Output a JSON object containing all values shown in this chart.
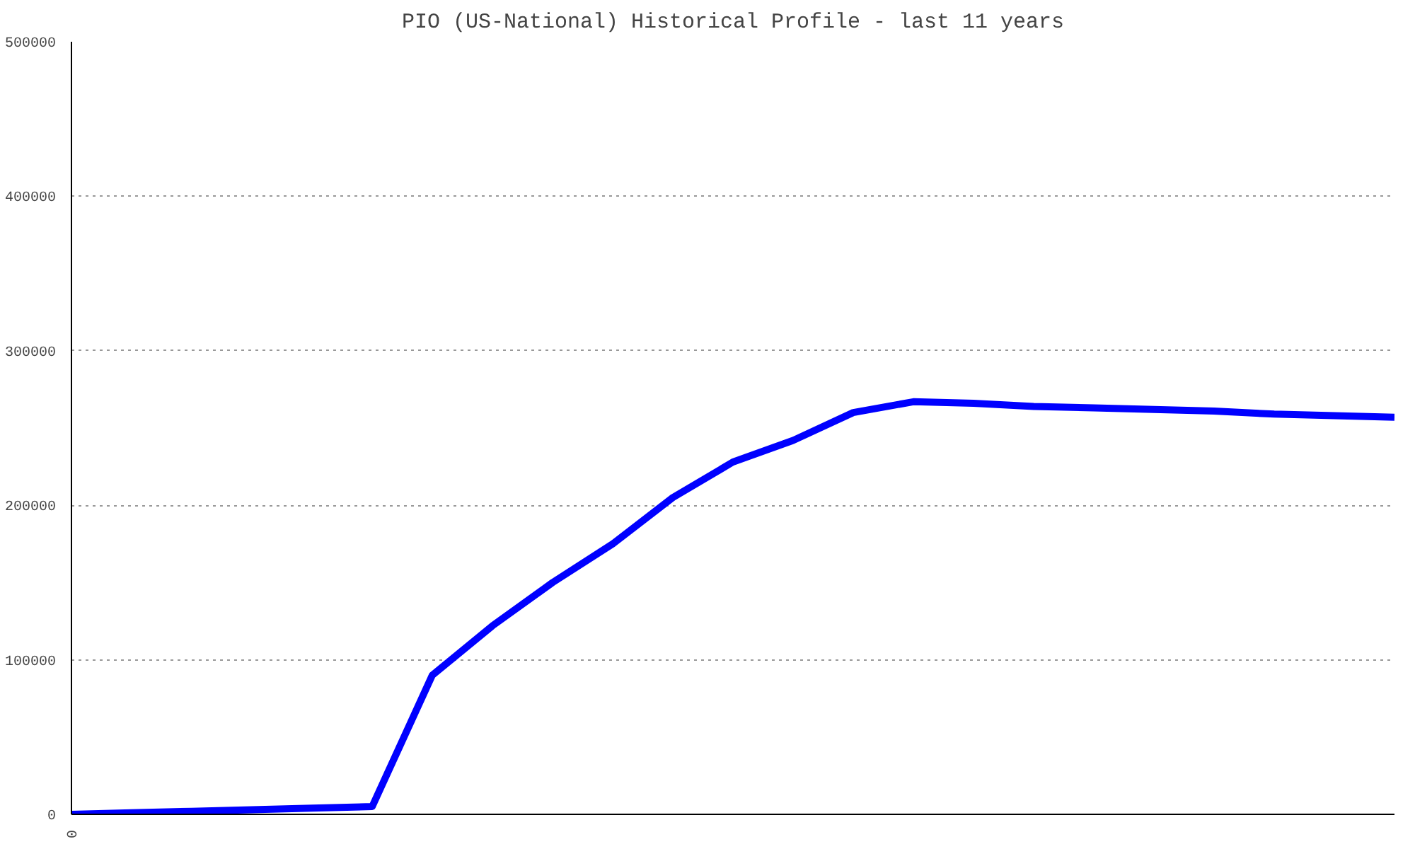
{
  "chart_data": {
    "type": "line",
    "title": "PIO (US-National) Historical Profile - last 11 years",
    "categories": [
      "0",
      null,
      null,
      null,
      null,
      null,
      null,
      null,
      null,
      null,
      null,
      null,
      null,
      null,
      null,
      null,
      null,
      null,
      null,
      null,
      null,
      null,
      null
    ],
    "series": [
      {
        "color": "#0000ff",
        "values": [
          0,
          1000,
          2000,
          3000,
          4000,
          5000,
          90000,
          122000,
          150000,
          175000,
          205000,
          228000,
          242000,
          260000,
          267000,
          266000,
          264000,
          263000,
          262000,
          261000,
          259000,
          258000,
          257000
        ]
      }
    ],
    "ylim": [
      0,
      500000
    ],
    "yticks": [
      0,
      100000,
      200000,
      300000,
      400000,
      500000
    ],
    "grid": "y",
    "marker": "none",
    "line_style": "solid"
  }
}
